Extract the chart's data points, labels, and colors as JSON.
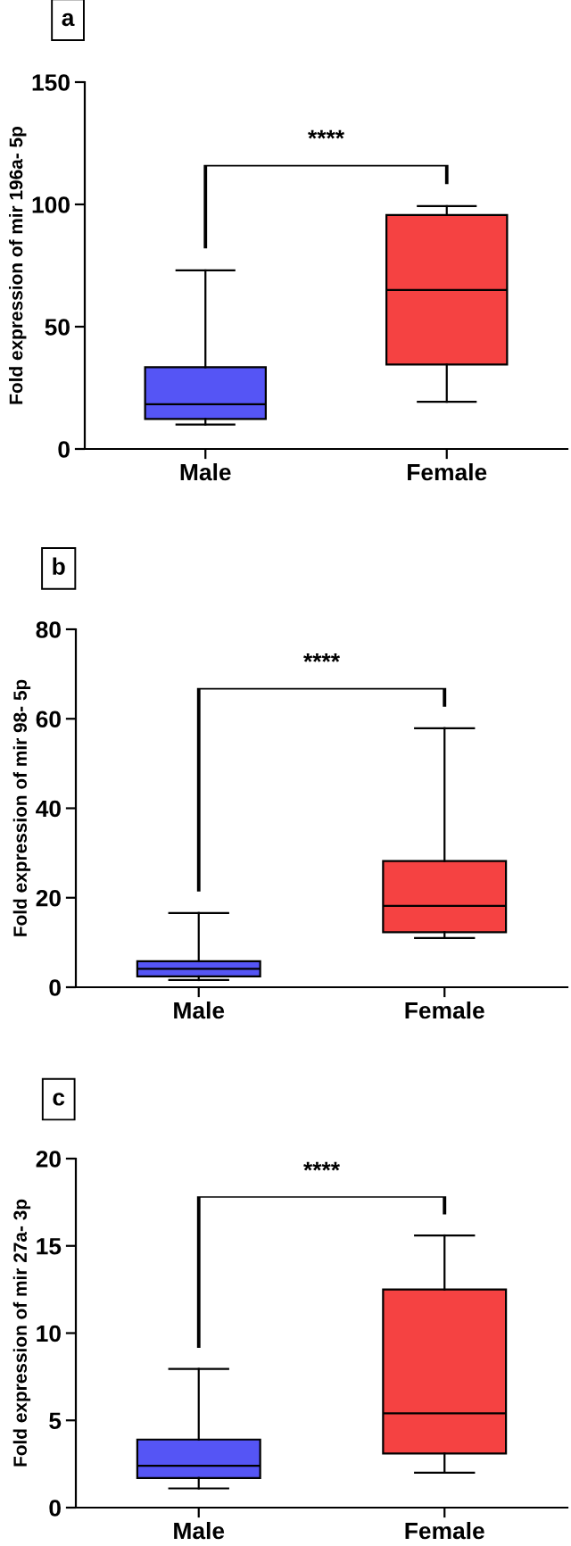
{
  "chart_data": [
    {
      "type": "box",
      "title": "a",
      "ylabel": "Fold expression of mir 196a- 5p",
      "categories": [
        "Male",
        "Female"
      ],
      "colors": [
        "#5555f5",
        "#f54242"
      ],
      "boxes": [
        {
          "low": 10,
          "q1": 12.3,
          "median": 18.3,
          "q3": 33.4,
          "high": 73
        },
        {
          "low": 19.3,
          "q1": 34.5,
          "median": 65,
          "q3": 95.7,
          "high": 99.3
        }
      ],
      "ylim": [
        0,
        150
      ],
      "yticks": [
        0,
        50,
        100,
        150
      ],
      "annotations": [
        "****"
      ]
    },
    {
      "type": "box",
      "title": "b",
      "ylabel": "Fold expression of mir 98- 5p",
      "categories": [
        "Male",
        "Female"
      ],
      "colors": [
        "#5555f5",
        "#f54242"
      ],
      "boxes": [
        {
          "low": 1.6,
          "q1": 2.4,
          "median": 4.1,
          "q3": 5.8,
          "high": 16.6
        },
        {
          "low": 11,
          "q1": 12.3,
          "median": 18.2,
          "q3": 28.2,
          "high": 57.9
        }
      ],
      "ylim": [
        0,
        80
      ],
      "yticks": [
        0,
        20,
        40,
        60,
        80
      ],
      "annotations": [
        "****"
      ]
    },
    {
      "type": "box",
      "title": "c",
      "ylabel": "Fold expression of mir 27a- 3p",
      "categories": [
        "Male",
        "Female"
      ],
      "colors": [
        "#5555f5",
        "#f54242"
      ],
      "boxes": [
        {
          "low": 1.1,
          "q1": 1.7,
          "median": 2.4,
          "q3": 3.9,
          "high": 7.95
        },
        {
          "low": 2.0,
          "q1": 3.1,
          "median": 5.4,
          "q3": 12.5,
          "high": 15.6
        }
      ],
      "ylim": [
        0,
        20
      ],
      "yticks": [
        0,
        5,
        10,
        15,
        20
      ],
      "annotations": [
        "****"
      ]
    }
  ]
}
